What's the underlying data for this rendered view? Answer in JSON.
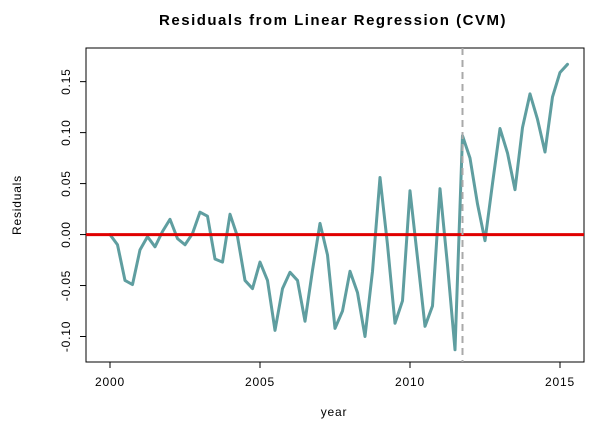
{
  "chart_data": {
    "type": "line",
    "title": "Residuals from Linear Regression (CVM)",
    "xlabel": "year",
    "ylabel": "Residuals",
    "xlim": [
      1999.2,
      2015.8
    ],
    "ylim": [
      -0.125,
      0.183
    ],
    "x_ticks": [
      2000,
      2005,
      2010,
      2015
    ],
    "x_tick_labels": [
      "2000",
      "2005",
      "2010",
      "2015"
    ],
    "y_ticks": [
      -0.1,
      -0.05,
      0.0,
      0.05,
      0.1,
      0.15
    ],
    "y_tick_labels": [
      "-0.10",
      "-0.05",
      "0.00",
      "0.05",
      "0.10",
      "0.15"
    ],
    "grid": false,
    "colors": {
      "series": "#5f9ea0",
      "reference_line": "#e00000",
      "vline": "#a9a9a9"
    },
    "reference_line": {
      "y": 0.0
    },
    "vline": {
      "x": 2011.75,
      "style": "dashed"
    },
    "series": [
      {
        "x": [
          2000.0,
          2000.25,
          2000.5,
          2000.75,
          2001.0,
          2001.25,
          2001.5,
          2001.75,
          2002.0,
          2002.25,
          2002.5,
          2002.75,
          2003.0,
          2003.25,
          2003.5,
          2003.75,
          2004.0,
          2004.25,
          2004.5,
          2004.75,
          2005.0,
          2005.25,
          2005.5,
          2005.75,
          2006.0,
          2006.25,
          2006.5,
          2006.75,
          2007.0,
          2007.25,
          2007.5,
          2007.75,
          2008.0,
          2008.25,
          2008.5,
          2008.75,
          2009.0,
          2009.25,
          2009.5,
          2009.75,
          2010.0,
          2010.25,
          2010.5,
          2010.75,
          2011.0,
          2011.25,
          2011.5,
          2011.75,
          2012.0,
          2012.25,
          2012.5,
          2012.75,
          2013.0,
          2013.25,
          2013.5,
          2013.75,
          2014.0,
          2014.25,
          2014.5,
          2014.75,
          2015.0,
          2015.25
        ],
        "values": [
          0.0,
          -0.01,
          -0.045,
          -0.049,
          -0.015,
          -0.002,
          -0.012,
          0.003,
          0.015,
          -0.004,
          -0.01,
          0.001,
          0.022,
          0.018,
          -0.024,
          -0.027,
          0.02,
          -0.002,
          -0.045,
          -0.053,
          -0.027,
          -0.045,
          -0.094,
          -0.053,
          -0.037,
          -0.045,
          -0.085,
          -0.035,
          0.011,
          -0.02,
          -0.092,
          -0.075,
          -0.036,
          -0.057,
          -0.1,
          -0.036,
          0.056,
          -0.01,
          -0.087,
          -0.065,
          0.043,
          -0.023,
          -0.09,
          -0.07,
          0.045,
          -0.03,
          -0.113,
          0.097,
          0.075,
          0.03,
          -0.006,
          0.05,
          0.104,
          0.08,
          0.044,
          0.105,
          0.138,
          0.113,
          0.081,
          0.135,
          0.159,
          0.167
        ]
      }
    ]
  }
}
